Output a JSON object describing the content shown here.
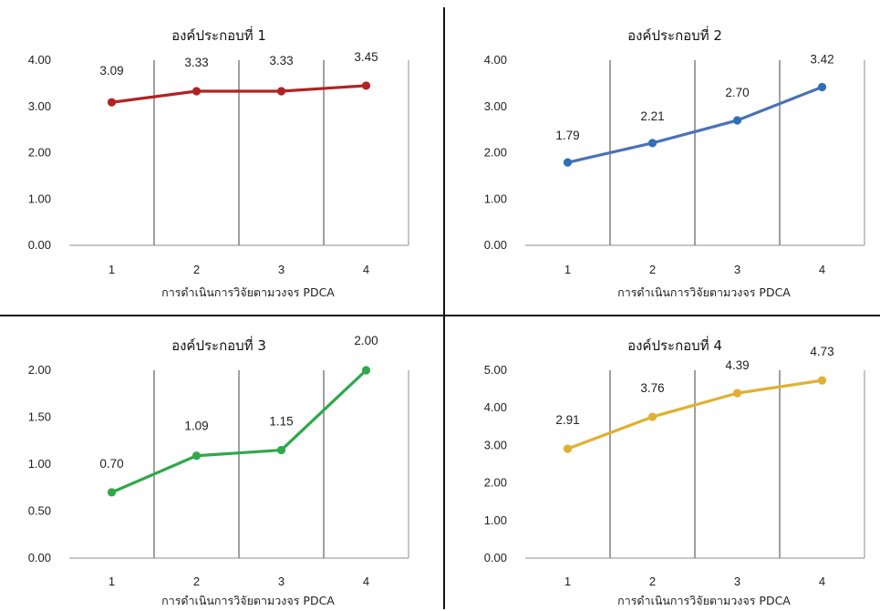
{
  "chart_data": [
    {
      "type": "line",
      "title": "องค์ประกอบที่ 1",
      "xlabel": "การดำเนินการวิจัยตามวงจร PDCA",
      "ylabel": "",
      "categories": [
        "1",
        "2",
        "3",
        "4"
      ],
      "values": [
        3.09,
        3.33,
        3.33,
        3.45
      ],
      "data_labels": [
        "3.09",
        "3.33",
        "3.33",
        "3.45"
      ],
      "ylim": [
        0,
        4
      ],
      "yticks": [
        "0.00",
        "1.00",
        "2.00",
        "3.00",
        "4.00"
      ],
      "color": "#b22222",
      "grid": "vertical",
      "legend": "none"
    },
    {
      "type": "line",
      "title": "องค์ประกอบที่ 2",
      "xlabel": "การดำเนินการวิจัยตามวงจร PDCA",
      "ylabel": "",
      "categories": [
        "1",
        "2",
        "3",
        "4"
      ],
      "values": [
        1.79,
        2.21,
        2.7,
        3.42
      ],
      "data_labels": [
        "1.79",
        "2.21",
        "2.70",
        "3.42"
      ],
      "ylim": [
        0,
        4
      ],
      "yticks": [
        "0.00",
        "1.00",
        "2.00",
        "3.00",
        "4.00"
      ],
      "color": "#4a72b8",
      "marker_color": "#2e6fba",
      "grid": "vertical",
      "legend": "none"
    },
    {
      "type": "line",
      "title": "องค์ประกอบที่ 3",
      "xlabel": "การดำเนินการวิจัยตามวงจร PDCA",
      "ylabel": "",
      "categories": [
        "1",
        "2",
        "3",
        "4"
      ],
      "values": [
        0.7,
        1.09,
        1.15,
        2.0
      ],
      "data_labels": [
        "0.70",
        "1.09",
        "1.15",
        "2.00"
      ],
      "ylim": [
        0,
        2
      ],
      "yticks": [
        "0.00",
        "0.50",
        "1.00",
        "1.50",
        "2.00"
      ],
      "color": "#2ea84a",
      "grid": "vertical",
      "legend": "none"
    },
    {
      "type": "line",
      "title": "องค์ประกอบที่ 4",
      "xlabel": "การดำเนินการวิจัยตามวงจร PDCA",
      "ylabel": "",
      "categories": [
        "1",
        "2",
        "3",
        "4"
      ],
      "values": [
        2.91,
        3.76,
        4.39,
        4.73
      ],
      "data_labels": [
        "2.91",
        "3.76",
        "4.39",
        "4.73"
      ],
      "ylim": [
        0,
        5
      ],
      "yticks": [
        "0.00",
        "1.00",
        "2.00",
        "3.00",
        "4.00",
        "5.00"
      ],
      "color": "#e0b030",
      "grid": "vertical",
      "legend": "none"
    }
  ]
}
